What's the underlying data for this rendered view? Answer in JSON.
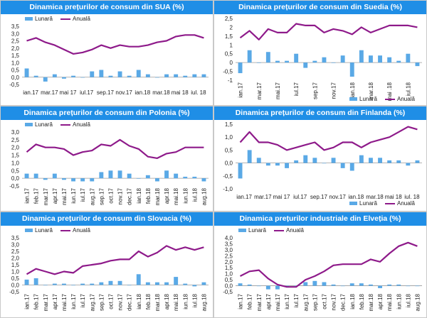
{
  "colors": {
    "bar": "#5aa9e6",
    "line": "#8e1a8a",
    "title_bg": "#1f8ee6"
  },
  "chart_data": [
    {
      "type": "bar+line",
      "title": "Dinamica prețurilor de consum din SUA (%)",
      "legend": [
        "Lunară",
        "Anuală"
      ],
      "legend_position": "top-left",
      "xaxis_position": "bottom",
      "x_label_rotation": 0,
      "ylim": [
        -0.5,
        3.5
      ],
      "yticks": [
        "-0,5",
        "0,0",
        "0,5",
        "1,0",
        "1,5",
        "2,0",
        "2,5",
        "3,0",
        "3,5"
      ],
      "x_labels": [
        "ian.17",
        "mar.17",
        "mai 17",
        "iul.17",
        "sep.17",
        "nov.17",
        "ian.18",
        "mar.18",
        "mai 18",
        "iul. 18"
      ],
      "label_every": 2,
      "monthly": [
        0.6,
        0.1,
        -0.3,
        0.2,
        -0.1,
        0.1,
        0.0,
        0.4,
        0.5,
        0.1,
        0.4,
        0.1,
        0.5,
        0.2,
        0.0,
        0.2,
        0.2,
        0.1,
        0.2,
        0.2
      ],
      "annual": [
        2.5,
        2.7,
        2.4,
        2.2,
        1.9,
        1.6,
        1.7,
        1.9,
        2.2,
        2.0,
        2.2,
        2.1,
        2.1,
        2.2,
        2.4,
        2.5,
        2.8,
        2.9,
        2.9,
        2.7
      ]
    },
    {
      "type": "bar+line",
      "title": "Dinamica prețurilor de consum din Suedia (%)",
      "legend": [
        "Lunară",
        "Anuală"
      ],
      "legend_position": "bottom-right",
      "xaxis_position": "bottom",
      "x_label_rotation": -90,
      "ylim": [
        -1.0,
        2.5
      ],
      "yticks": [
        "-1",
        "-0,5",
        "0",
        "0,5",
        "1",
        "1,5",
        "2",
        "2,5"
      ],
      "x_labels": [
        "ian.17",
        "mar.17",
        "mai.17",
        "iul.17",
        "sep.17",
        "nov.17",
        "ian.18",
        "mar.18",
        "mai .18",
        "iul.18"
      ],
      "label_every": 2,
      "monthly": [
        -0.6,
        0.7,
        0.0,
        0.6,
        0.1,
        0.1,
        0.5,
        -0.3,
        0.1,
        0.3,
        0.0,
        0.4,
        -0.8,
        0.7,
        0.4,
        0.4,
        0.3,
        0.1,
        0.5,
        -0.2
      ],
      "annual": [
        1.4,
        1.8,
        1.3,
        1.9,
        1.7,
        1.7,
        2.2,
        2.1,
        2.1,
        1.7,
        1.9,
        1.8,
        1.6,
        2.0,
        1.7,
        1.9,
        2.1,
        2.1,
        2.1,
        2.0
      ]
    },
    {
      "type": "bar+line",
      "title": "Dinamica prețurilor de consum din Polonia (%)",
      "legend": [
        "Lunară",
        "Anuală"
      ],
      "legend_position": "top-left",
      "xaxis_position": "bottom",
      "x_label_rotation": -90,
      "ylim": [
        -0.5,
        3.0
      ],
      "yticks": [
        "-0,5",
        "0,0",
        "0,5",
        "1,0",
        "1,5",
        "2,0",
        "2,5",
        "3,0"
      ],
      "x_labels": [
        "ian.17",
        "feb.17",
        "mar.17",
        "apr.17",
        "mai.17",
        "iun.17",
        "iul.17",
        "aug.17",
        "sep.17",
        "oct.17",
        "nov.17",
        "dec.17",
        "ian.18",
        "feb.18",
        "mar.18",
        "apr.18",
        "mai.18",
        "iun.18",
        "iul.18",
        "aug.18"
      ],
      "label_every": 1,
      "monthly": [
        0.3,
        0.3,
        -0.1,
        0.3,
        -0.1,
        -0.2,
        -0.2,
        -0.2,
        0.4,
        0.5,
        0.5,
        0.3,
        0.0,
        0.2,
        -0.2,
        0.5,
        0.3,
        0.1,
        0.1,
        -0.2
      ],
      "annual": [
        1.7,
        2.2,
        2.0,
        2.0,
        1.9,
        1.5,
        1.7,
        1.8,
        2.2,
        2.1,
        2.5,
        2.1,
        1.9,
        1.4,
        1.3,
        1.6,
        1.7,
        2.0,
        2.0,
        2.0
      ]
    },
    {
      "type": "bar+line",
      "title": "Dinamica prețurilor de consum din Finlanda (%)",
      "legend": [
        "Lunară",
        "Anuală"
      ],
      "legend_position": "bottom-right",
      "xaxis_position": "bottom",
      "x_label_rotation": 0,
      "ylim": [
        -1.0,
        1.5
      ],
      "yticks": [
        "-1,0",
        "-0,5",
        "0,0",
        "0,5",
        "1,0",
        "1,5"
      ],
      "x_labels": [
        "ian.17",
        "mar.17",
        "mai 17",
        "iul.17",
        "sep.17",
        "nov.17",
        "ian.18",
        "mar.18",
        "mai 18",
        "iul. 18"
      ],
      "label_every": 2,
      "monthly": [
        -0.6,
        0.5,
        0.2,
        -0.1,
        -0.1,
        -0.2,
        0.1,
        0.3,
        0.2,
        0.0,
        0.2,
        -0.2,
        -0.3,
        0.3,
        0.2,
        0.2,
        0.1,
        0.1,
        -0.1,
        0.1
      ],
      "annual": [
        0.8,
        1.2,
        0.8,
        0.8,
        0.7,
        0.5,
        0.6,
        0.7,
        0.8,
        0.5,
        0.6,
        0.8,
        0.8,
        0.6,
        0.8,
        0.9,
        1.0,
        1.2,
        1.4,
        1.3
      ]
    },
    {
      "type": "bar+line",
      "title": "Dinamica prețurilor de consum din Slovacia (%)",
      "legend": [
        "Lunară",
        "Anuală"
      ],
      "legend_position": "top-left",
      "xaxis_position": "bottom",
      "x_label_rotation": -90,
      "ylim": [
        -0.5,
        3.5
      ],
      "yticks": [
        "-0,5",
        "0,0",
        "0,5",
        "1,0",
        "1,5",
        "2,0",
        "2,5",
        "3,0",
        "3,5"
      ],
      "x_labels": [
        "ian.17",
        "feb.17",
        "mar.17",
        "apr.17",
        "mai.17",
        "iun.17",
        "iul.17",
        "aug.17",
        "sep.17",
        "oct.17",
        "nov.17",
        "dec.17",
        "ian.18",
        "feb.18",
        "mar.18",
        "apr.18",
        "mai.18",
        "iun.18",
        "iul.18",
        "aug.18"
      ],
      "label_every": 1,
      "monthly": [
        0.4,
        0.5,
        0.0,
        0.1,
        0.1,
        0.0,
        0.1,
        0.1,
        0.2,
        0.3,
        0.3,
        0.0,
        0.8,
        0.2,
        0.2,
        0.2,
        0.6,
        0.1,
        -0.1,
        0.2
      ],
      "annual": [
        0.8,
        1.2,
        1.0,
        0.8,
        1.0,
        0.9,
        1.4,
        1.5,
        1.6,
        1.8,
        1.9,
        1.9,
        2.5,
        2.1,
        2.4,
        2.9,
        2.6,
        2.8,
        2.6,
        2.8
      ]
    },
    {
      "type": "bar+line",
      "title": "Dinamica prețurilor industriale din Elveția (%)",
      "legend": [
        "Lunară",
        "Anuală"
      ],
      "legend_position": "top-left",
      "xaxis_position": "bottom",
      "x_label_rotation": -90,
      "ylim": [
        -0.5,
        4.0
      ],
      "yticks": [
        "-0,5",
        "0,0",
        "0,5",
        "1,0",
        "1,5",
        "2,0",
        "2,5",
        "3,0",
        "3,5",
        "4,0"
      ],
      "x_labels": [
        "ian.17",
        "feb.17",
        "mar.17",
        "apr.17",
        "mai.17",
        "iun.17",
        "iul.17",
        "aug.17",
        "sep.17",
        "oct.17",
        "nov.17",
        "dec.17",
        "ian.18",
        "feb.18",
        "mar.18",
        "apr.18",
        "mai.18",
        "iun.18",
        "iul.18",
        "aug.18"
      ],
      "label_every": 1,
      "monthly": [
        0.2,
        0.1,
        0.0,
        -0.3,
        -0.3,
        -0.1,
        0.0,
        0.3,
        0.4,
        0.3,
        0.1,
        0.0,
        0.2,
        0.2,
        0.1,
        -0.2,
        0.1,
        0.1,
        0.0,
        0.0
      ],
      "annual": [
        0.8,
        1.2,
        1.3,
        0.6,
        0.1,
        -0.1,
        -0.1,
        0.5,
        0.8,
        1.2,
        1.7,
        1.8,
        1.8,
        1.8,
        2.2,
        2.0,
        2.7,
        3.3,
        3.6,
        3.3
      ]
    }
  ]
}
